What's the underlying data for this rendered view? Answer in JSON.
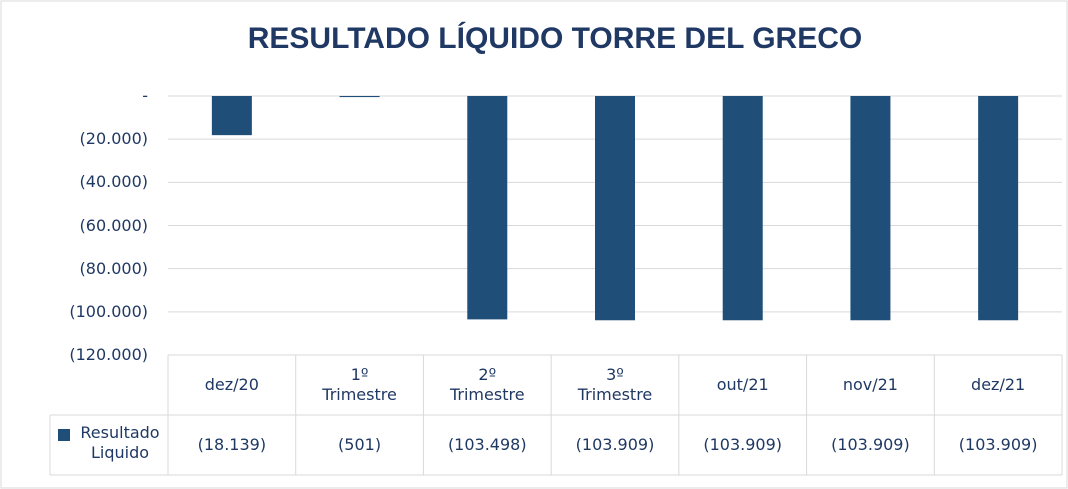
{
  "chart_data": {
    "type": "bar",
    "title": "RESULTADO LÍQUIDO TORRE DEL GRECO",
    "categories": [
      "dez/20",
      "1º Trimestre",
      "2º Trimestre",
      "3º Trimestre",
      "out/21",
      "nov/21",
      "dez/21"
    ],
    "series": [
      {
        "name": "Resultado Liquido",
        "color": "#1f4e79",
        "values": [
          -18139,
          -501,
          -103498,
          -103909,
          -103909,
          -103909,
          -103909
        ],
        "value_labels": [
          "(18.139)",
          "(501)",
          "(103.498)",
          "(103.909)",
          "(103.909)",
          "(103.909)",
          "(103.909)"
        ]
      }
    ],
    "ylim": [
      -120000,
      0
    ],
    "yticks": [
      {
        "value": 0,
        "label": "-"
      },
      {
        "value": -20000,
        "label": "(20.000)"
      },
      {
        "value": -40000,
        "label": "(40.000)"
      },
      {
        "value": -60000,
        "label": "(60.000)"
      },
      {
        "value": -80000,
        "label": "(80.000)"
      },
      {
        "value": -100000,
        "label": "(100.000)"
      },
      {
        "value": -120000,
        "label": "(120.000)"
      }
    ],
    "grid": true
  }
}
